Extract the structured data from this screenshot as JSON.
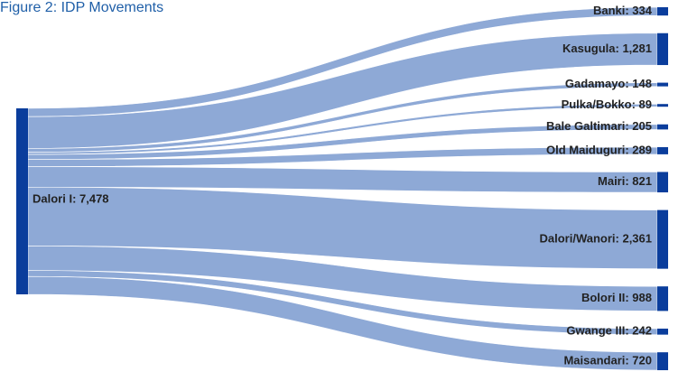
{
  "figure": {
    "title": "Figure 2: IDP Movements"
  },
  "colors": {
    "node": "#0a3d9c",
    "link": "#8ea9d6"
  },
  "chart_data": {
    "type": "sankey",
    "source": {
      "name": "Dalori I",
      "value": 7478,
      "label": "Dalori I: 7,478"
    },
    "targets": [
      {
        "name": "Banki",
        "value": 334,
        "label": "Banki: 334"
      },
      {
        "name": "Kasugula",
        "value": 1281,
        "label": "Kasugula: 1,281"
      },
      {
        "name": "Gadamayo",
        "value": 148,
        "label": "Gadamayo: 148"
      },
      {
        "name": "Pulka/Bokko",
        "value": 89,
        "label": "Pulka/Bokko: 89"
      },
      {
        "name": "Bale Galtimari",
        "value": 205,
        "label": "Bale Galtimari: 205"
      },
      {
        "name": "Old Maiduguri",
        "value": 289,
        "label": "Old Maiduguri: 289"
      },
      {
        "name": "Mairi",
        "value": 821,
        "label": "Mairi: 821"
      },
      {
        "name": "Dalori/Wanori",
        "value": 2361,
        "label": "Dalori/Wanori: 2,361"
      },
      {
        "name": "Bolori II",
        "value": 988,
        "label": "Bolori II: 988"
      },
      {
        "name": "Gwange III",
        "value": 242,
        "label": "Gwange III: 242"
      },
      {
        "name": "Maisandari",
        "value": 720,
        "label": "Maisandari: 720"
      }
    ]
  }
}
